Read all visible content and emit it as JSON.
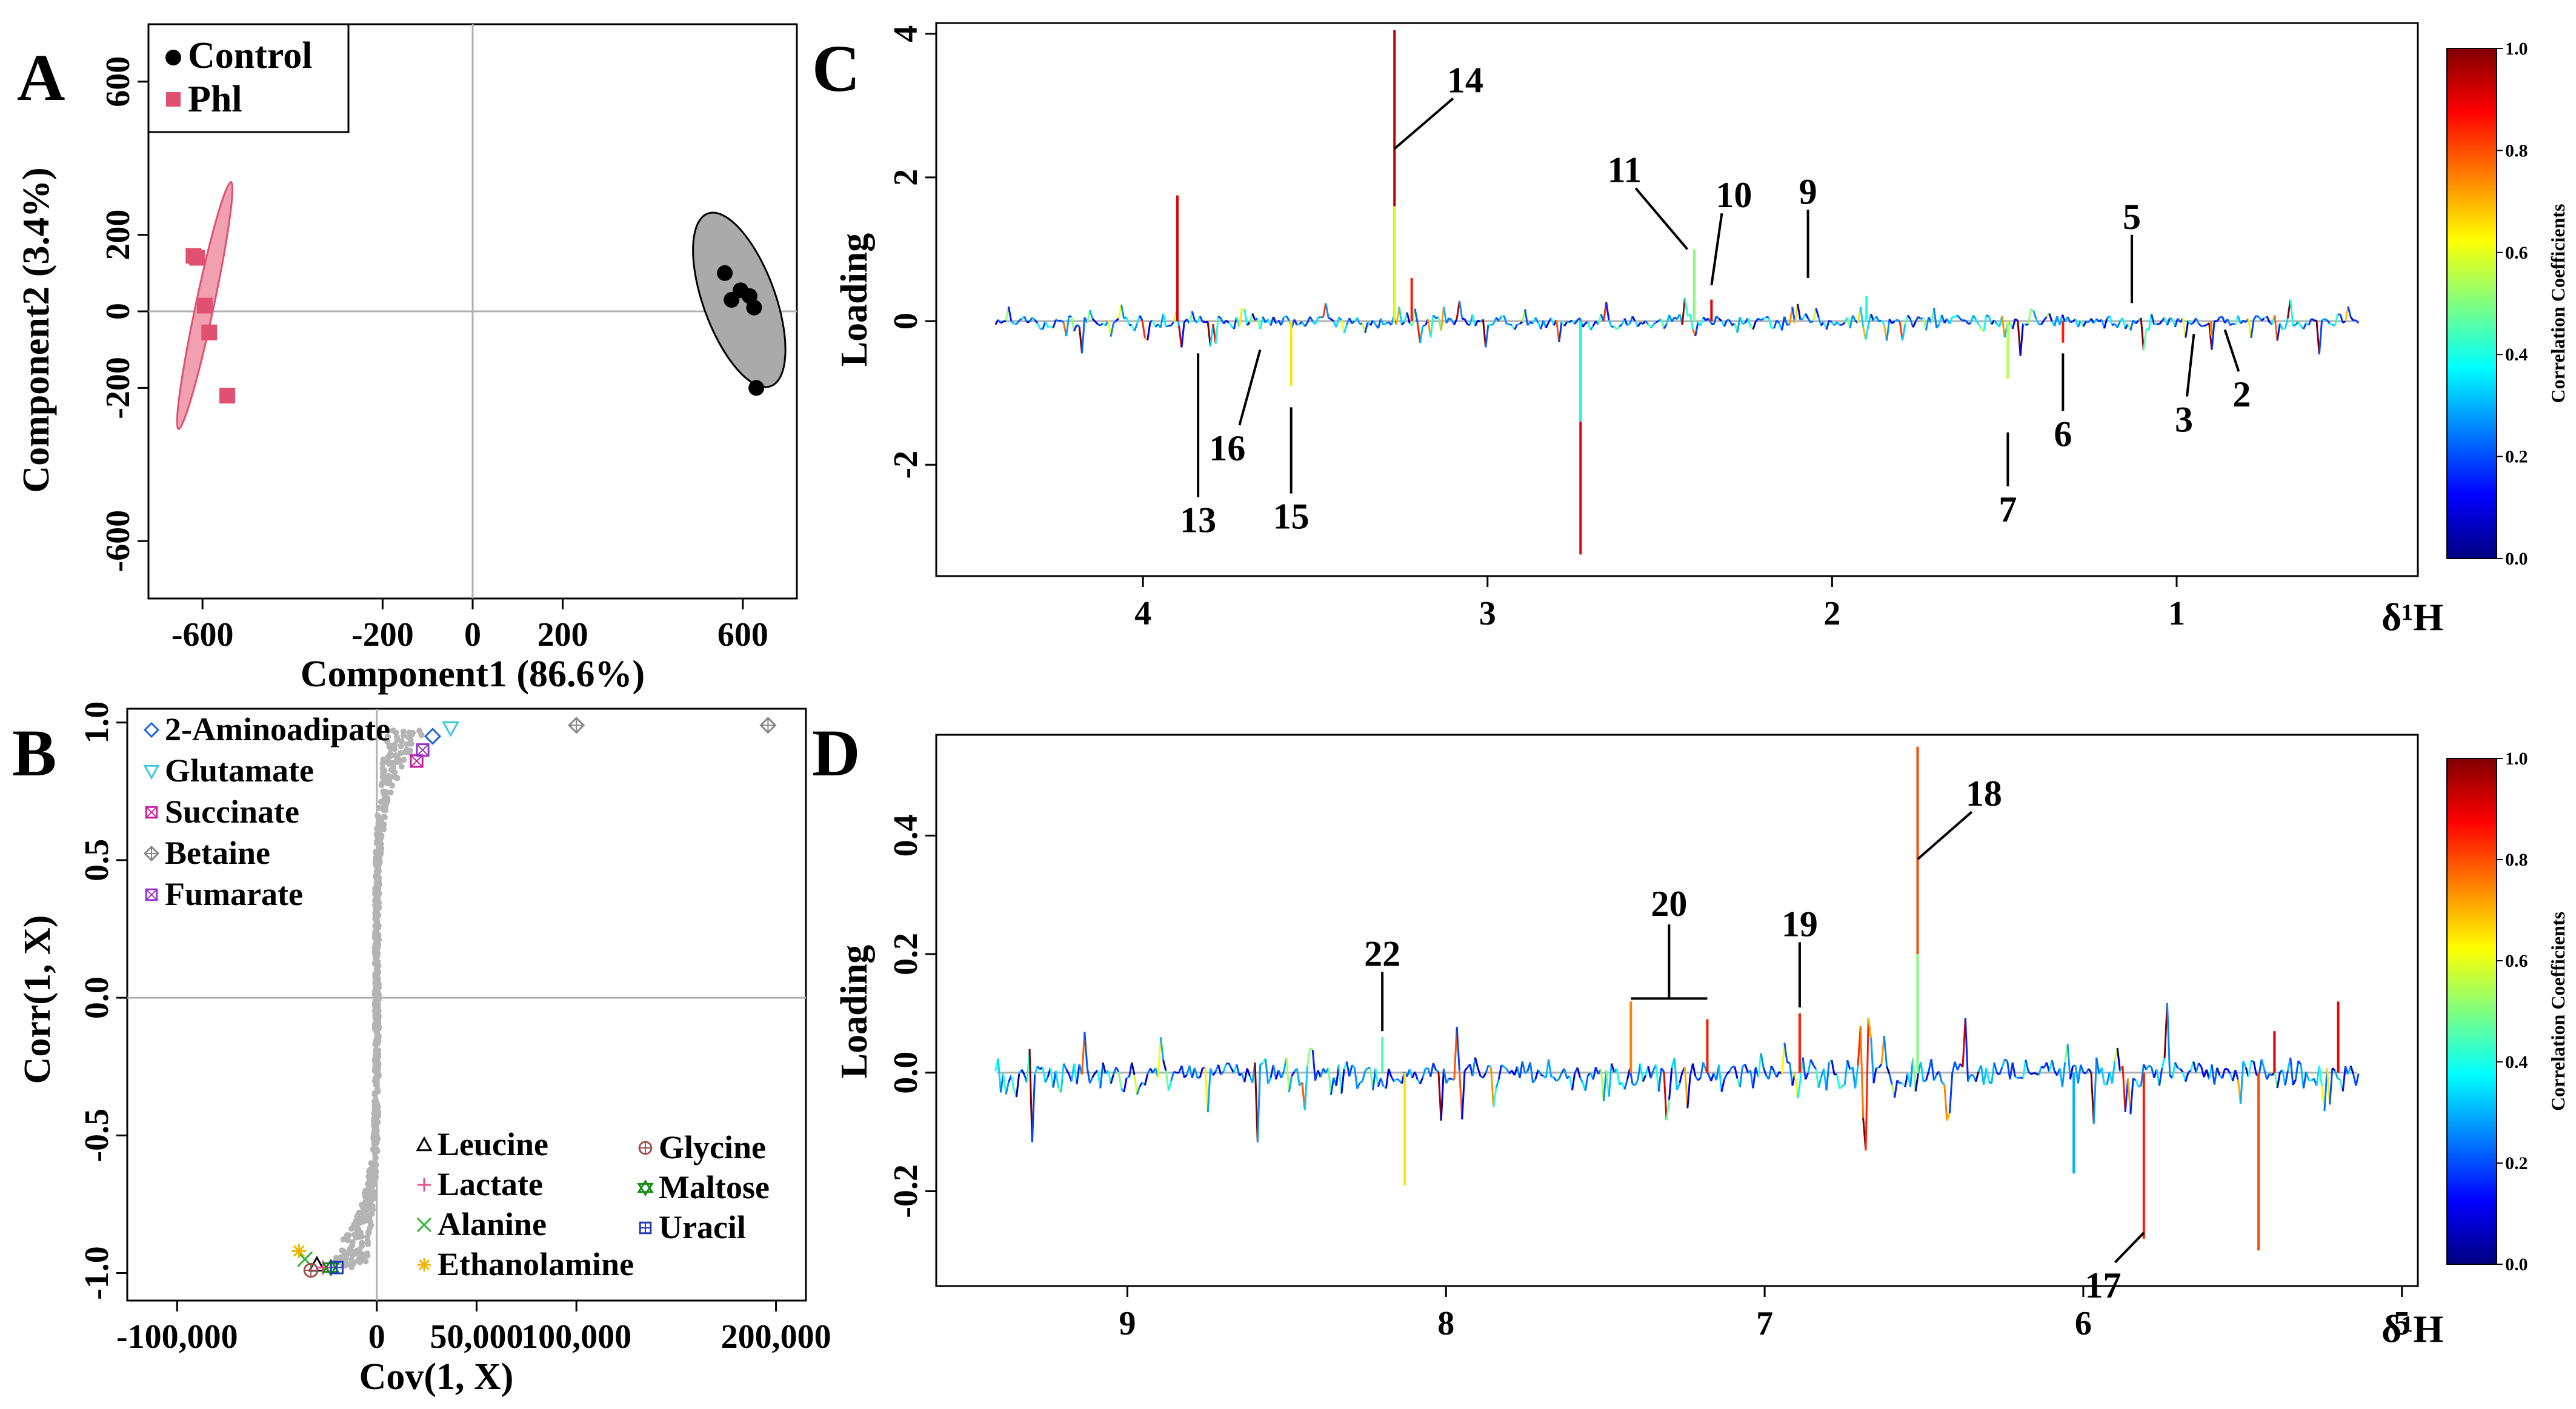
{
  "panel_labels": [
    "A",
    "B",
    "C",
    "D"
  ],
  "colors": {
    "control": "#000000",
    "phl": "#e05070",
    "control_ellipse": "#aaaaaa",
    "phl_ellipse": "#f0a0b0",
    "scatter_grey": "#b4b4b4",
    "zero_line": "#b0b0b0"
  },
  "chart_data": [
    {
      "id": "A",
      "type": "scatter",
      "xlabel": "Component1 (86.6%)",
      "ylabel": "Component2 (3.4%)",
      "xlim": [
        -720,
        720
      ],
      "ylim": [
        -750,
        750
      ],
      "xticks": [
        -600,
        -200,
        0,
        200,
        600
      ],
      "xtick_labels": [
        "-600",
        "-200",
        "0",
        "200",
        "600"
      ],
      "yticks": [
        -600,
        -200,
        0,
        200,
        600
      ],
      "ytick_labels": [
        "-600",
        "-200",
        "0",
        "200",
        "600"
      ],
      "legend": [
        "Control",
        "Phl"
      ],
      "series": [
        {
          "name": "Control",
          "marker": "circle",
          "x": [
            560,
            575,
            595,
            615,
            625,
            630
          ],
          "y": [
            100,
            30,
            55,
            40,
            10,
            -200
          ]
        },
        {
          "name": "Phl",
          "marker": "square",
          "x": [
            -620,
            -612,
            -595,
            -585,
            -545
          ],
          "y": [
            145,
            140,
            15,
            -55,
            -220
          ]
        }
      ],
      "ellipses": [
        {
          "series": "Control",
          "cx": 592,
          "cy": 30,
          "rx": 80,
          "ry": 240,
          "angle_deg": -20
        },
        {
          "series": "Phl",
          "cx": -595,
          "cy": 15,
          "rx": 20,
          "ry": 330,
          "angle_deg": 12
        }
      ]
    },
    {
      "id": "B",
      "type": "scatter",
      "xlabel": "Cov(1, X)",
      "ylabel": "Corr(1, X)",
      "xlim": [
        -125000,
        215000
      ],
      "ylim": [
        -1.1,
        1.05
      ],
      "xticks": [
        -100000,
        0,
        50000,
        100000,
        200000
      ],
      "xtick_labels": [
        "-100,000",
        "0",
        "50,000",
        "100,000",
        "200,000"
      ],
      "yticks": [
        -1.0,
        -0.5,
        0.0,
        0.5,
        1.0
      ],
      "ytick_labels": [
        "-1.0",
        "-0.5",
        "0.0",
        "0.5",
        "1.0"
      ],
      "legend_top": [
        "2-Aminoadipate",
        "Glutamate",
        "Succinate",
        "Betaine",
        "Fumarate"
      ],
      "legend_bottom_left": [
        "Leucine",
        "Lactate",
        "Alanine",
        "Ethanolamine"
      ],
      "legend_bottom_right": [
        "Glycine",
        "Maltose",
        "Uracil"
      ],
      "points": [
        {
          "name": "2-Aminoadipate",
          "x": 28000,
          "y": 0.95,
          "color": "#1e64dc",
          "marker": "diamond"
        },
        {
          "name": "Glutamate",
          "x": 37000,
          "y": 0.98,
          "color": "#3cc8dc",
          "marker": "triangle-down"
        },
        {
          "name": "Succinate",
          "x": 20000,
          "y": 0.86,
          "color": "#c81ea0",
          "marker": "square-x"
        },
        {
          "name": "Betaine",
          "x": 100000,
          "y": 0.99,
          "color": "#888888",
          "marker": "diamond-plus"
        },
        {
          "name": "Betaine",
          "x": 196000,
          "y": 0.99,
          "color": "#888888",
          "marker": "diamond-plus"
        },
        {
          "name": "Fumarate",
          "x": 23000,
          "y": 0.9,
          "color": "#9632c8",
          "marker": "square-x"
        },
        {
          "name": "Leucine",
          "x": -30000,
          "y": -0.97,
          "color": "#000000",
          "marker": "triangle"
        },
        {
          "name": "Lactate",
          "x": -27000,
          "y": -0.98,
          "color": "#e6508c",
          "marker": "plus"
        },
        {
          "name": "Alanine",
          "x": -36000,
          "y": -0.95,
          "color": "#32b432",
          "marker": "x"
        },
        {
          "name": "Ethanolamine",
          "x": -39000,
          "y": -0.92,
          "color": "#f0b400",
          "marker": "star"
        },
        {
          "name": "Glycine",
          "x": -33000,
          "y": -0.99,
          "color": "#a05050",
          "marker": "circle-plus"
        },
        {
          "name": "Maltose",
          "x": -23000,
          "y": -0.98,
          "color": "#148c14",
          "marker": "hexagram"
        },
        {
          "name": "Uracil",
          "x": -20000,
          "y": -0.98,
          "color": "#1e3cb4",
          "marker": "square-plus"
        }
      ]
    },
    {
      "id": "C",
      "type": "line",
      "xlabel": "δ¹H",
      "ylabel": "Loading",
      "xlim": [
        4.6,
        0.3
      ],
      "ylim": [
        -3.55,
        4.15
      ],
      "xticks": [
        4,
        3,
        2,
        1
      ],
      "xtick_labels": [
        "4",
        "3",
        "2",
        "1"
      ],
      "yticks": [
        4,
        2,
        0,
        -2
      ],
      "ytick_labels": [
        "4",
        "2",
        "0",
        "-2"
      ],
      "peaks": [
        {
          "x": 3.9,
          "y": 1.75,
          "corr": 0.9
        },
        {
          "x": 3.27,
          "y": 4.05,
          "corr": 0.95
        },
        {
          "x": 3.27,
          "y": 1.6,
          "corr": 0.6
        },
        {
          "x": 3.22,
          "y": 0.6,
          "corr": 0.85
        },
        {
          "x": 2.73,
          "y": -3.25,
          "corr": 0.9
        },
        {
          "x": 2.73,
          "y": -1.4,
          "corr": 0.4
        },
        {
          "x": 2.4,
          "y": 1.0,
          "corr": 0.5
        },
        {
          "x": 2.35,
          "y": 0.3,
          "corr": 0.9
        },
        {
          "x": 3.57,
          "y": -0.9,
          "corr": 0.65
        },
        {
          "x": 1.49,
          "y": -0.8,
          "corr": 0.55
        },
        {
          "x": 1.33,
          "y": -0.3,
          "corr": 0.85
        },
        {
          "x": 1.9,
          "y": 0.35,
          "corr": 0.4
        },
        {
          "x": 0.9,
          "y": -0.2,
          "corr": 0.75
        }
      ],
      "annotations": [
        {
          "label": "14",
          "x": 3.27,
          "y": 2.4,
          "lx": 3.1,
          "ly": 3.1
        },
        {
          "label": "11",
          "x": 2.42,
          "y": 1.0,
          "lx": 2.57,
          "ly": 1.85
        },
        {
          "label": "10",
          "x": 2.35,
          "y": 0.5,
          "lx": 2.32,
          "ly": 1.5
        },
        {
          "label": "9",
          "x": 2.07,
          "y": 0.6,
          "lx": 2.07,
          "ly": 1.55
        },
        {
          "label": "5",
          "x": 1.13,
          "y": 0.25,
          "lx": 1.13,
          "ly": 1.2
        },
        {
          "label": "13",
          "x": 3.84,
          "y": -0.45,
          "lx": 3.84,
          "ly": -2.45
        },
        {
          "label": "16",
          "x": 3.66,
          "y": -0.4,
          "lx": 3.72,
          "ly": -1.45
        },
        {
          "label": "15",
          "x": 3.57,
          "y": -1.2,
          "lx": 3.57,
          "ly": -2.4
        },
        {
          "label": "7",
          "x": 1.49,
          "y": -1.55,
          "lx": 1.49,
          "ly": -2.3
        },
        {
          "label": "6",
          "x": 1.33,
          "y": -0.45,
          "lx": 1.33,
          "ly": -1.25
        },
        {
          "label": "3",
          "x": 0.95,
          "y": -0.18,
          "lx": 0.97,
          "ly": -1.05
        },
        {
          "label": "2",
          "x": 0.86,
          "y": -0.12,
          "lx": 0.82,
          "ly": -0.7
        }
      ]
    },
    {
      "id": "D",
      "type": "line",
      "xlabel": "δ¹H",
      "ylabel": "Loading",
      "xlim": [
        9.6,
        4.95
      ],
      "ylim": [
        -0.36,
        0.57
      ],
      "xticks": [
        9,
        8,
        7,
        6,
        5
      ],
      "xtick_labels": [
        "9",
        "8",
        "7",
        "6",
        "5"
      ],
      "yticks": [
        0.4,
        0.2,
        0.0,
        -0.2
      ],
      "ytick_labels": [
        "0.4",
        "0.2",
        "0.0",
        "-0.2"
      ],
      "peaks": [
        {
          "x": 6.52,
          "y": 0.55,
          "corr": 0.8
        },
        {
          "x": 6.52,
          "y": 0.2,
          "corr": 0.5
        },
        {
          "x": 6.89,
          "y": 0.1,
          "corr": 0.85
        },
        {
          "x": 7.42,
          "y": 0.12,
          "corr": 0.75
        },
        {
          "x": 7.18,
          "y": 0.09,
          "corr": 0.85
        },
        {
          "x": 8.2,
          "y": 0.06,
          "corr": 0.45
        },
        {
          "x": 5.81,
          "y": -0.28,
          "corr": 0.85
        },
        {
          "x": 5.45,
          "y": -0.3,
          "corr": 0.8
        },
        {
          "x": 5.2,
          "y": 0.12,
          "corr": 0.9
        },
        {
          "x": 5.4,
          "y": 0.07,
          "corr": 0.9
        },
        {
          "x": 8.13,
          "y": -0.19,
          "corr": 0.65
        },
        {
          "x": 6.03,
          "y": -0.17,
          "corr": 0.3
        }
      ],
      "annotations": [
        {
          "label": "18",
          "x": 6.52,
          "y": 0.36,
          "lx": 6.35,
          "ly": 0.44
        },
        {
          "label": "19",
          "x": 6.89,
          "y": 0.11,
          "lx": 6.89,
          "ly": 0.22
        },
        {
          "label": "22",
          "x": 8.2,
          "y": 0.07,
          "lx": 8.2,
          "ly": 0.17
        },
        {
          "label": "17",
          "x": 5.81,
          "y": -0.27,
          "lx": 5.9,
          "ly": -0.32
        }
      ],
      "bracket": {
        "label": "20",
        "x1": 7.42,
        "x2": 7.18,
        "y": 0.125,
        "ytop": 0.25
      }
    }
  ],
  "colorbar": {
    "title": "Correlation Coefficients",
    "ticks": [
      "1.0",
      "0.8",
      "0.6",
      "0.4",
      "0.2",
      "0.0"
    ],
    "stops": [
      "#000080",
      "#0000ff",
      "#0080ff",
      "#00ffff",
      "#80ff80",
      "#ffff00",
      "#ff8000",
      "#ff0000",
      "#800000"
    ]
  }
}
